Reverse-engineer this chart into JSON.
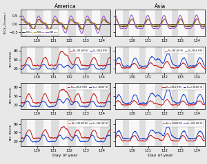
{
  "title_america": "America",
  "title_asia": "Asia",
  "xlabel": "Day of year",
  "ylabel_top": "TEC$_{N-S}$(norm.)",
  "ylabel_mid": "TEC (TECU)",
  "xlim": [
    129.0,
    134.5
  ],
  "xticks": [
    130,
    131,
    132,
    133,
    134
  ],
  "row0_ylim": [
    -0.75,
    0.85
  ],
  "row0_yticks": [
    -0.5,
    0.0,
    0.5
  ],
  "row1234_ylim": [
    5,
    95
  ],
  "row1234_yticks": [
    20,
    50,
    80
  ],
  "shade_color": "#cccccc",
  "fig_bg": "#e8e8e8",
  "ax_bg": "#f7f7f7",
  "row0_colors": [
    "#2d2d2d",
    "#c8960a",
    "#9b4fcc"
  ],
  "line_red": "#cc2222",
  "line_blue": "#2244cc",
  "lw": 0.75
}
